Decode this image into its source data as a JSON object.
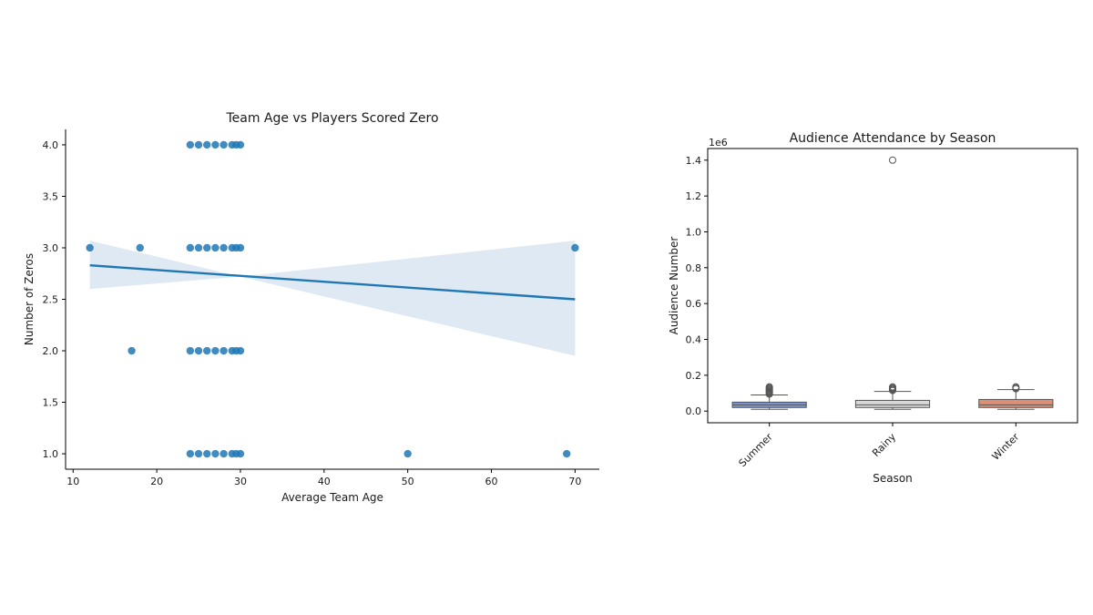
{
  "chart_data": [
    {
      "type": "scatter",
      "title": "Team Age vs Players Scored Zero",
      "xlabel": "Average Team Age",
      "ylabel": "Number of Zeros",
      "xlim": [
        9.1,
        72.9
      ],
      "ylim": [
        0.85,
        4.15
      ],
      "xticks": [
        10,
        20,
        30,
        40,
        50,
        60,
        70
      ],
      "yticks": [
        1.0,
        1.5,
        2.0,
        2.5,
        3.0,
        3.5,
        4.0
      ],
      "spines": "left-bottom",
      "grid": false,
      "color": "#1f77b4",
      "ci_color": "#dbe7f2",
      "points": [
        [
          12,
          3
        ],
        [
          18,
          3
        ],
        [
          17,
          2
        ],
        [
          50,
          1
        ],
        [
          69,
          1
        ],
        [
          70,
          3
        ],
        [
          24,
          4
        ],
        [
          25,
          4
        ],
        [
          26,
          4
        ],
        [
          27,
          4
        ],
        [
          28,
          4
        ],
        [
          29,
          4
        ],
        [
          29.5,
          4
        ],
        [
          30,
          4
        ],
        [
          24,
          3
        ],
        [
          25,
          3
        ],
        [
          26,
          3
        ],
        [
          27,
          3
        ],
        [
          28,
          3
        ],
        [
          29,
          3
        ],
        [
          29.5,
          3
        ],
        [
          30,
          3
        ],
        [
          24,
          2
        ],
        [
          25,
          2
        ],
        [
          26,
          2
        ],
        [
          27,
          2
        ],
        [
          28,
          2
        ],
        [
          29,
          2
        ],
        [
          29.5,
          2
        ],
        [
          30,
          2
        ],
        [
          24,
          1
        ],
        [
          25,
          1
        ],
        [
          26,
          1
        ],
        [
          27,
          1
        ],
        [
          28,
          1
        ],
        [
          29,
          1
        ],
        [
          29.5,
          1
        ],
        [
          30,
          1
        ]
      ],
      "regression": {
        "x": [
          12,
          70
        ],
        "y": [
          2.83,
          2.5
        ]
      },
      "ci_band": {
        "x": [
          12,
          30,
          70
        ],
        "lower": [
          2.6,
          2.72,
          1.95
        ],
        "upper": [
          3.07,
          2.72,
          3.07
        ]
      }
    },
    {
      "type": "box",
      "title": "Audience Attendance by Season",
      "xlabel": "Season",
      "ylabel": "Audience Number",
      "y_offset_label": "1e6",
      "ylim": [
        -0.065,
        1.465
      ],
      "yticks": [
        0.0,
        0.2,
        0.4,
        0.6,
        0.8,
        1.0,
        1.2,
        1.4
      ],
      "categories": [
        "Summer",
        "Rainy",
        "Winter"
      ],
      "grid": false,
      "boxes": [
        {
          "name": "Summer",
          "color": "#7b96d0",
          "whisker_low": 0.01,
          "q1": 0.02,
          "median": 0.035,
          "q3": 0.05,
          "whisker_high": 0.09,
          "outliers": [
            0.095,
            0.1,
            0.105,
            0.11,
            0.115,
            0.12,
            0.125,
            0.13,
            0.135
          ]
        },
        {
          "name": "Rainy",
          "color": "#d8d8d8",
          "whisker_low": 0.01,
          "q1": 0.02,
          "median": 0.035,
          "q3": 0.06,
          "whisker_high": 0.11,
          "outliers": [
            0.115,
            0.12,
            0.125,
            0.13,
            0.135,
            1.4
          ]
        },
        {
          "name": "Winter",
          "color": "#e08e74",
          "whisker_low": 0.01,
          "q1": 0.02,
          "median": 0.035,
          "q3": 0.065,
          "whisker_high": 0.12,
          "outliers": [
            0.125,
            0.13,
            0.135
          ]
        }
      ]
    }
  ]
}
